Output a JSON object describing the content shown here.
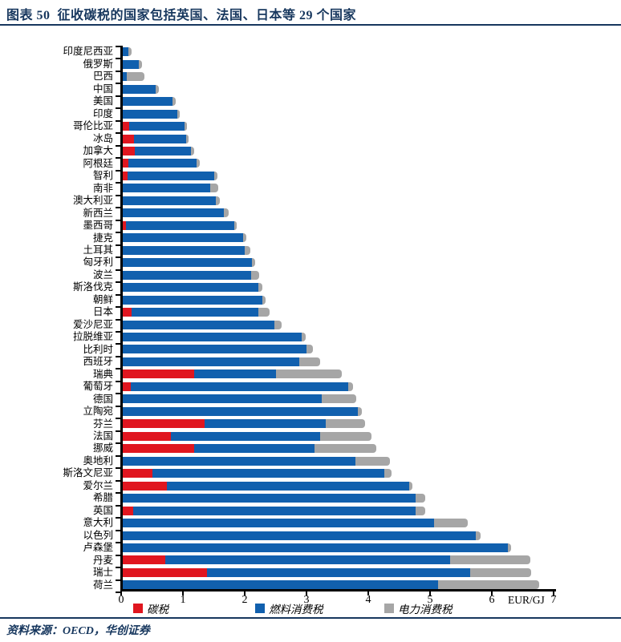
{
  "header": {
    "title": "图表 50  征收碳税的国家包括英国、法国、日本等 29 个国家"
  },
  "footer": {
    "source": "资料来源：OECD，华创证券"
  },
  "colors": {
    "accent_navy": "#17375e",
    "carbon": "#e0161f",
    "fuel": "#1160ae",
    "electricity": "#a6a6a6",
    "axis": "#000000"
  },
  "chart_data": {
    "type": "bar",
    "orientation": "horizontal",
    "title": "征收碳税的国家包括英国、法国、日本等29个国家",
    "xlabel": "EUR/GJ",
    "ylabel": "",
    "xlim": [
      0,
      7
    ],
    "x_ticks": [
      0,
      1,
      2,
      3,
      4,
      5,
      6,
      7
    ],
    "grid": false,
    "legend_position": "bottom",
    "unit_label": "EUR/GJ",
    "legend": [
      {
        "name": "碳税",
        "color": "#e0161f"
      },
      {
        "name": "燃料消费税",
        "color": "#1160ae"
      },
      {
        "name": "电力消费税",
        "color": "#a6a6a6"
      }
    ],
    "categories": [
      "印度尼西亚",
      "俄罗斯",
      "巴西",
      "中国",
      "美国",
      "印度",
      "哥伦比亚",
      "冰岛",
      "加拿大",
      "阿根廷",
      "智利",
      "南非",
      "澳大利亚",
      "新西兰",
      "墨西哥",
      "捷克",
      "土耳其",
      "匈牙利",
      "波兰",
      "斯洛伐克",
      "朝鲜",
      "日本",
      "爱沙尼亚",
      "拉脱维亚",
      "比利时",
      "西班牙",
      "瑞典",
      "葡萄牙",
      "德国",
      "立陶宛",
      "芬兰",
      "法国",
      "挪威",
      "奥地利",
      "斯洛文尼亚",
      "爱尔兰",
      "希腊",
      "英国",
      "意大利",
      "以色列",
      "卢森堡",
      "丹麦",
      "瑞士",
      "荷兰"
    ],
    "series": [
      {
        "name": "碳税",
        "values": [
          0,
          0,
          0,
          0,
          0,
          0,
          0.1,
          0.18,
          0.19,
          0.09,
          0.08,
          0,
          0,
          0,
          0.05,
          0,
          0,
          0,
          0,
          0,
          0,
          0.14,
          0,
          0,
          0,
          0,
          1.15,
          0.13,
          0,
          0,
          1.32,
          0.78,
          1.16,
          0,
          0.48,
          0.72,
          0,
          0.17,
          0,
          0,
          0,
          0.69,
          1.36,
          0
        ]
      },
      {
        "name": "燃料消费税",
        "values": [
          0.09,
          0.26,
          0.06,
          0.53,
          0.8,
          0.88,
          0.9,
          0.84,
          0.92,
          1.11,
          1.4,
          1.42,
          1.51,
          1.64,
          1.75,
          1.95,
          1.98,
          2.09,
          2.08,
          2.19,
          2.26,
          2.06,
          2.45,
          2.89,
          2.97,
          2.86,
          1.33,
          3.52,
          3.22,
          3.81,
          1.97,
          2.41,
          1.94,
          3.77,
          3.76,
          3.92,
          4.74,
          4.57,
          5.04,
          5.72,
          6.23,
          4.61,
          4.26,
          5.11
        ]
      },
      {
        "name": "电力消费税",
        "values": [
          0.05,
          0.05,
          0.29,
          0.05,
          0.06,
          0.04,
          0.04,
          0.04,
          0.05,
          0.05,
          0.05,
          0.12,
          0.06,
          0.07,
          0.05,
          0.05,
          0.08,
          0.05,
          0.13,
          0.07,
          0.05,
          0.18,
          0.12,
          0.07,
          0.11,
          0.33,
          1.07,
          0.08,
          0.56,
          0.06,
          0.63,
          0.84,
          1.01,
          0.56,
          0.11,
          0.05,
          0.15,
          0.16,
          0.54,
          0.07,
          0.06,
          1.3,
          0.99,
          1.63
        ]
      }
    ]
  }
}
